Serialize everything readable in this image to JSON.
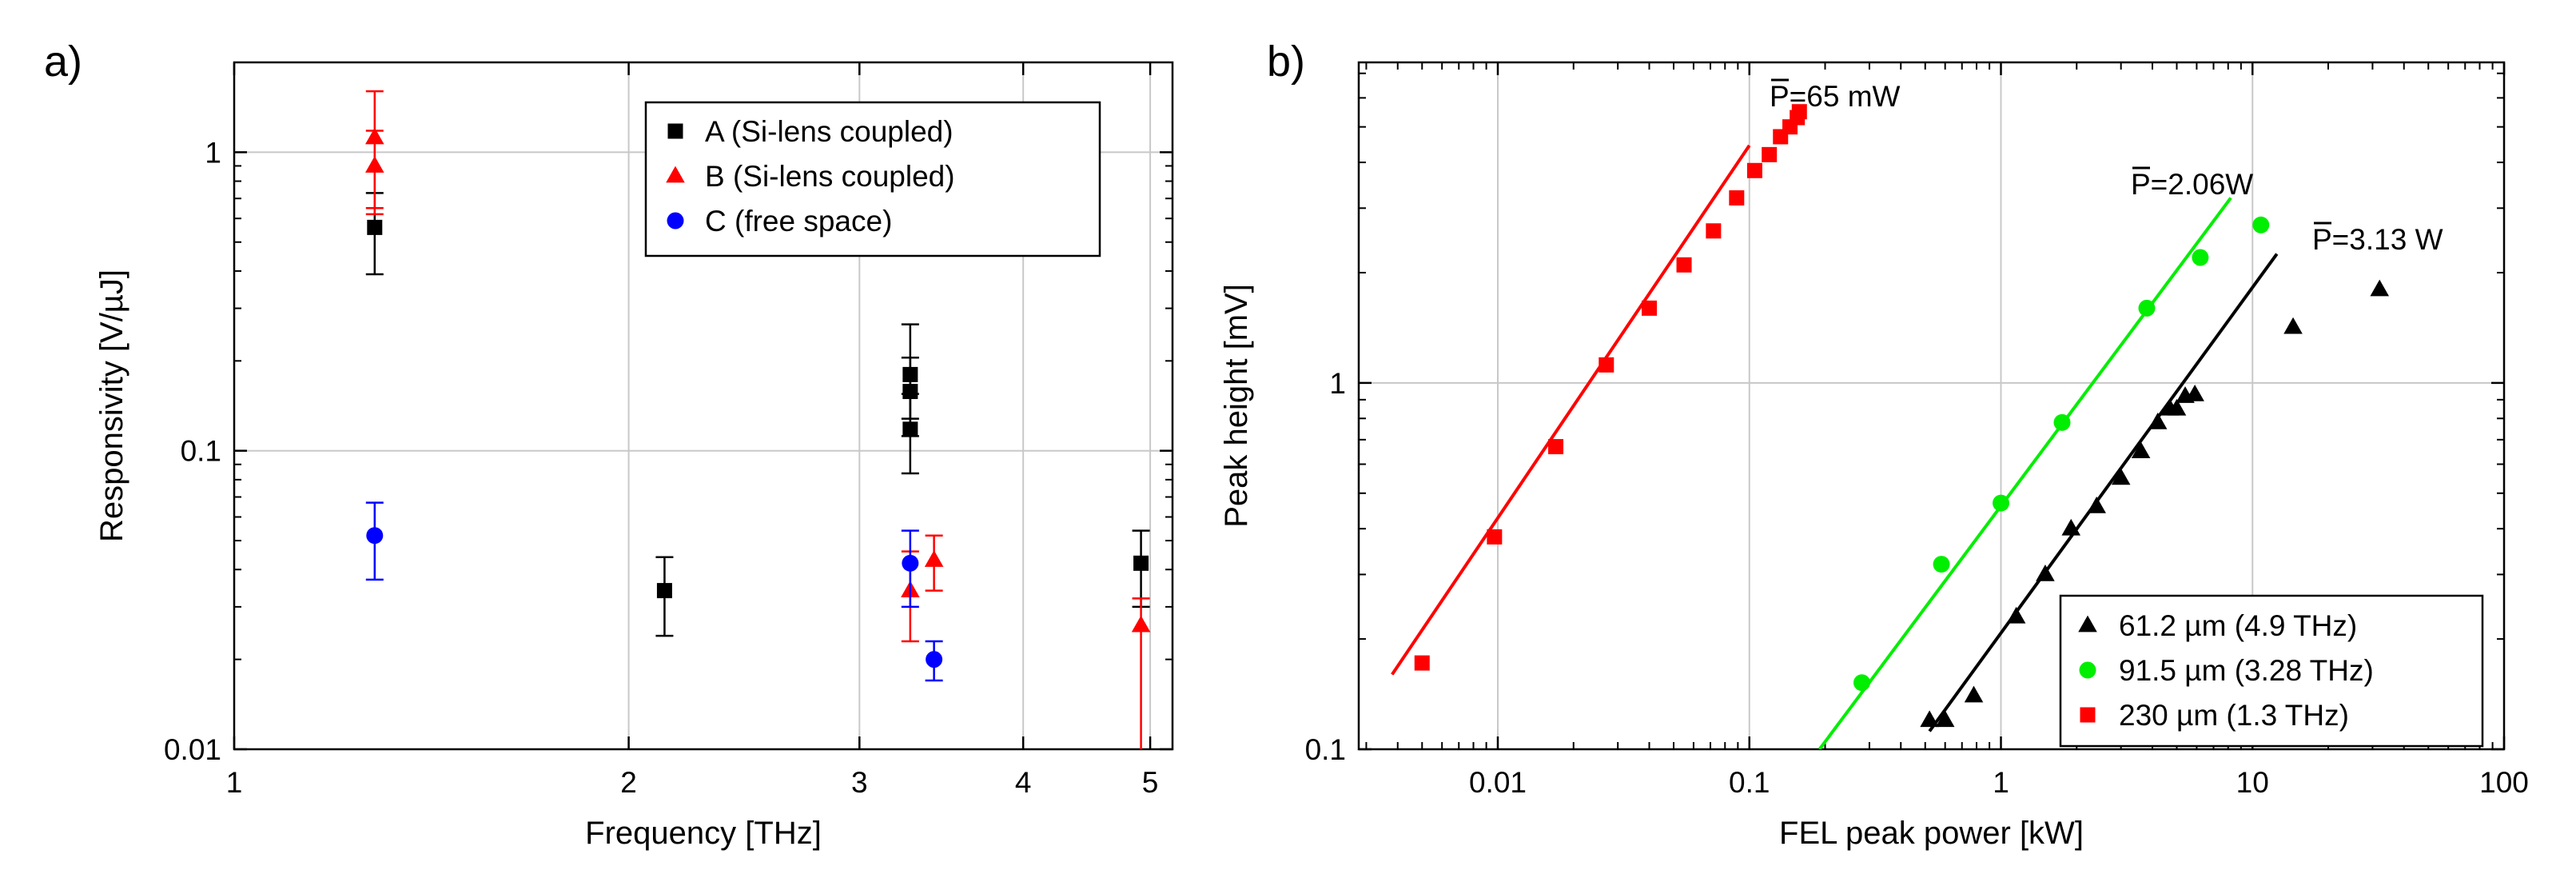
{
  "chart_data": [
    {
      "type": "scatter",
      "panel_label": "a)",
      "xlabel": "Frequency [THz]",
      "ylabel": "Responsivity  [V/µJ]",
      "xscale": "log",
      "yscale": "log",
      "xlim": [
        1,
        5.2
      ],
      "ylim": [
        0.01,
        2
      ],
      "xticks": [
        1,
        2,
        3,
        4,
        5
      ],
      "xtick_labels": [
        "1",
        "2",
        "3",
        "4",
        "5"
      ],
      "yticks": [
        0.01,
        0.1,
        1
      ],
      "ytick_labels": [
        "0.01",
        "0.1",
        "1"
      ],
      "grid": true,
      "legend_position": "top-right",
      "series": [
        {
          "name": "A (Si-lens coupled)",
          "marker": "square",
          "color": "#000000",
          "points": [
            {
              "x": 1.28,
              "y": 0.56,
              "lo": 0.39,
              "hi": 0.73
            },
            {
              "x": 2.13,
              "y": 0.034,
              "lo": 0.024,
              "hi": 0.044
            },
            {
              "x": 3.28,
              "y": 0.18,
              "lo": 0.128,
              "hi": 0.265
            },
            {
              "x": 3.28,
              "y": 0.158,
              "lo": 0.112,
              "hi": 0.205
            },
            {
              "x": 3.28,
              "y": 0.118,
              "lo": 0.084,
              "hi": 0.155
            },
            {
              "x": 4.92,
              "y": 0.042,
              "lo": 0.03,
              "hi": 0.054
            }
          ]
        },
        {
          "name": "B (Si-lens coupled)",
          "marker": "triangle",
          "color": "#ff0000",
          "points": [
            {
              "x": 1.28,
              "y": 1.12,
              "lo": 0.65,
              "hi": 1.6
            },
            {
              "x": 1.28,
              "y": 0.9,
              "lo": 0.62,
              "hi": 1.18
            },
            {
              "x": 3.28,
              "y": 0.034,
              "lo": 0.023,
              "hi": 0.046
            },
            {
              "x": 3.42,
              "y": 0.043,
              "lo": 0.034,
              "hi": 0.052
            },
            {
              "x": 4.92,
              "y": 0.026,
              "lo": 0.006,
              "hi": 0.032
            }
          ]
        },
        {
          "name": "C (free space)",
          "marker": "circle",
          "color": "#0000ff",
          "points": [
            {
              "x": 1.28,
              "y": 0.052,
              "lo": 0.037,
              "hi": 0.067
            },
            {
              "x": 3.28,
              "y": 0.042,
              "lo": 0.03,
              "hi": 0.054
            },
            {
              "x": 3.42,
              "y": 0.02,
              "lo": 0.017,
              "hi": 0.023
            }
          ]
        }
      ]
    },
    {
      "type": "scatter",
      "panel_label": "b)",
      "xlabel": "FEL peak power  [kW]",
      "ylabel": "Peak height [mV]",
      "xscale": "log",
      "yscale": "log",
      "xlim": [
        0.0028,
        100
      ],
      "ylim": [
        0.1,
        7.5
      ],
      "xticks": [
        0.01,
        0.1,
        1,
        10,
        100
      ],
      "xtick_labels": [
        "0.01",
        "0.1",
        "1",
        "10",
        "100"
      ],
      "yticks": [
        0.1,
        1
      ],
      "ytick_labels": [
        "0.1",
        "1"
      ],
      "grid": true,
      "legend_position": "bottom-right",
      "series": [
        {
          "name": "61.2 µm (4.9 THz)",
          "marker": "triangle",
          "color": "#000000",
          "annotation": "P=3.13 W",
          "points": [
            [
              0.52,
              0.12
            ],
            [
              0.6,
              0.12
            ],
            [
              0.78,
              0.14
            ],
            [
              1.15,
              0.23
            ],
            [
              1.5,
              0.3
            ],
            [
              1.9,
              0.4
            ],
            [
              2.4,
              0.46
            ],
            [
              3.0,
              0.55
            ],
            [
              3.6,
              0.65
            ],
            [
              4.2,
              0.78
            ],
            [
              4.7,
              0.85
            ],
            [
              5.0,
              0.85
            ],
            [
              5.4,
              0.92
            ],
            [
              5.9,
              0.93
            ],
            [
              14.5,
              1.42
            ],
            [
              32.0,
              1.8
            ]
          ],
          "fit_line": [
            [
              0.52,
              0.112
            ],
            [
              12.5,
              2.25
            ]
          ]
        },
        {
          "name": "91.5 µm (3.28 THz)",
          "marker": "circle",
          "color": "#00ee00",
          "annotation": "P=2.06W",
          "points": [
            [
              0.28,
              0.152
            ],
            [
              0.58,
              0.32
            ],
            [
              1.0,
              0.47
            ],
            [
              1.75,
              0.78
            ],
            [
              3.8,
              1.6
            ],
            [
              6.2,
              2.2
            ],
            [
              10.8,
              2.7
            ]
          ],
          "fit_line": [
            [
              0.19,
              0.1
            ],
            [
              8.2,
              3.2
            ]
          ]
        },
        {
          "name": "230 µm (1.3 THz)",
          "marker": "square",
          "color": "#ff0000",
          "annotation": "P=65 mW",
          "points": [
            [
              0.005,
              0.172
            ],
            [
              0.0097,
              0.38
            ],
            [
              0.017,
              0.67
            ],
            [
              0.027,
              1.12
            ],
            [
              0.04,
              1.6
            ],
            [
              0.055,
              2.1
            ],
            [
              0.072,
              2.6
            ],
            [
              0.089,
              3.2
            ],
            [
              0.105,
              3.8
            ],
            [
              0.12,
              4.2
            ],
            [
              0.133,
              4.7
            ],
            [
              0.145,
              5.0
            ],
            [
              0.155,
              5.3
            ],
            [
              0.158,
              5.5
            ]
          ],
          "fit_line": [
            [
              0.0038,
              0.16
            ],
            [
              0.1,
              4.45
            ]
          ]
        }
      ]
    }
  ]
}
